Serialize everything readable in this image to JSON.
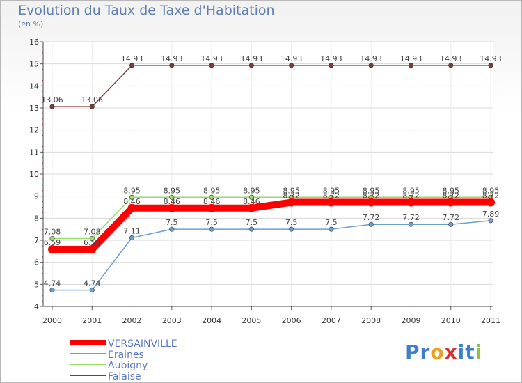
{
  "chart_data": {
    "type": "line",
    "title": "Evolution du Taux de Taxe d'Habitation",
    "subtitle": "(en %)",
    "xlabel": "",
    "ylabel": "",
    "categories": [
      "2000",
      "2001",
      "2002",
      "2003",
      "2004",
      "2005",
      "2006",
      "2007",
      "2008",
      "2009",
      "2010",
      "2011"
    ],
    "ylim": [
      4,
      16
    ],
    "yticks": [
      "4",
      "5",
      "6",
      "7",
      "8",
      "9",
      "10",
      "11",
      "12",
      "13",
      "14",
      "15",
      "16"
    ],
    "grid": true,
    "legend_position": "bottom-left",
    "series": [
      {
        "name": "VERSAINVILLE",
        "color": "#ff0000",
        "values": [
          6.59,
          6.59,
          8.46,
          8.46,
          8.46,
          8.46,
          8.72,
          8.72,
          8.72,
          8.72,
          8.72,
          8.72
        ],
        "labels": [
          "6.59",
          "6.59",
          "8.46",
          "8.46",
          "8.46",
          "8.46",
          "8.72",
          "8.72",
          "8.72",
          "8.72",
          "8.72",
          "8.72"
        ]
      },
      {
        "name": "Eraines",
        "color": "#6a9fd0",
        "values": [
          4.74,
          4.74,
          7.11,
          7.5,
          7.5,
          7.5,
          7.5,
          7.5,
          7.72,
          7.72,
          7.72,
          7.89
        ],
        "labels": [
          "4.74",
          "4.74",
          "7.11",
          "7.5",
          "7.5",
          "7.5",
          "7.5",
          "7.5",
          "7.72",
          "7.72",
          "7.72",
          "7.89"
        ]
      },
      {
        "name": "Aubigny",
        "color": "#99dd66",
        "values": [
          7.08,
          7.08,
          8.95,
          8.95,
          8.95,
          8.95,
          8.95,
          8.95,
          8.95,
          8.95,
          8.95,
          8.95
        ],
        "labels": [
          "7.08",
          "7.08",
          "8.95",
          "8.95",
          "8.95",
          "8.95",
          "8.95",
          "8.95",
          "8.95",
          "8.95",
          "8.95",
          "8.95"
        ]
      },
      {
        "name": "Falaise",
        "color": "#7a3b3b",
        "values": [
          13.06,
          13.06,
          14.93,
          14.93,
          14.93,
          14.93,
          14.93,
          14.93,
          14.93,
          14.93,
          14.93,
          14.93
        ],
        "labels": [
          "13.06",
          "13.06",
          "14.93",
          "14.93",
          "14.93",
          "14.93",
          "14.93",
          "14.93",
          "14.93",
          "14.93",
          "14.93",
          "14.93"
        ]
      }
    ]
  },
  "logo": {
    "text": "Proxiti",
    "letters": [
      "P",
      "r",
      "o",
      "x",
      "i",
      "t",
      "i"
    ],
    "colors": [
      "#3f80c8",
      "#3f80c8",
      "#e8a020",
      "#d83030",
      "#3f80c8",
      "#3f80c8",
      "#8bc34a"
    ]
  }
}
